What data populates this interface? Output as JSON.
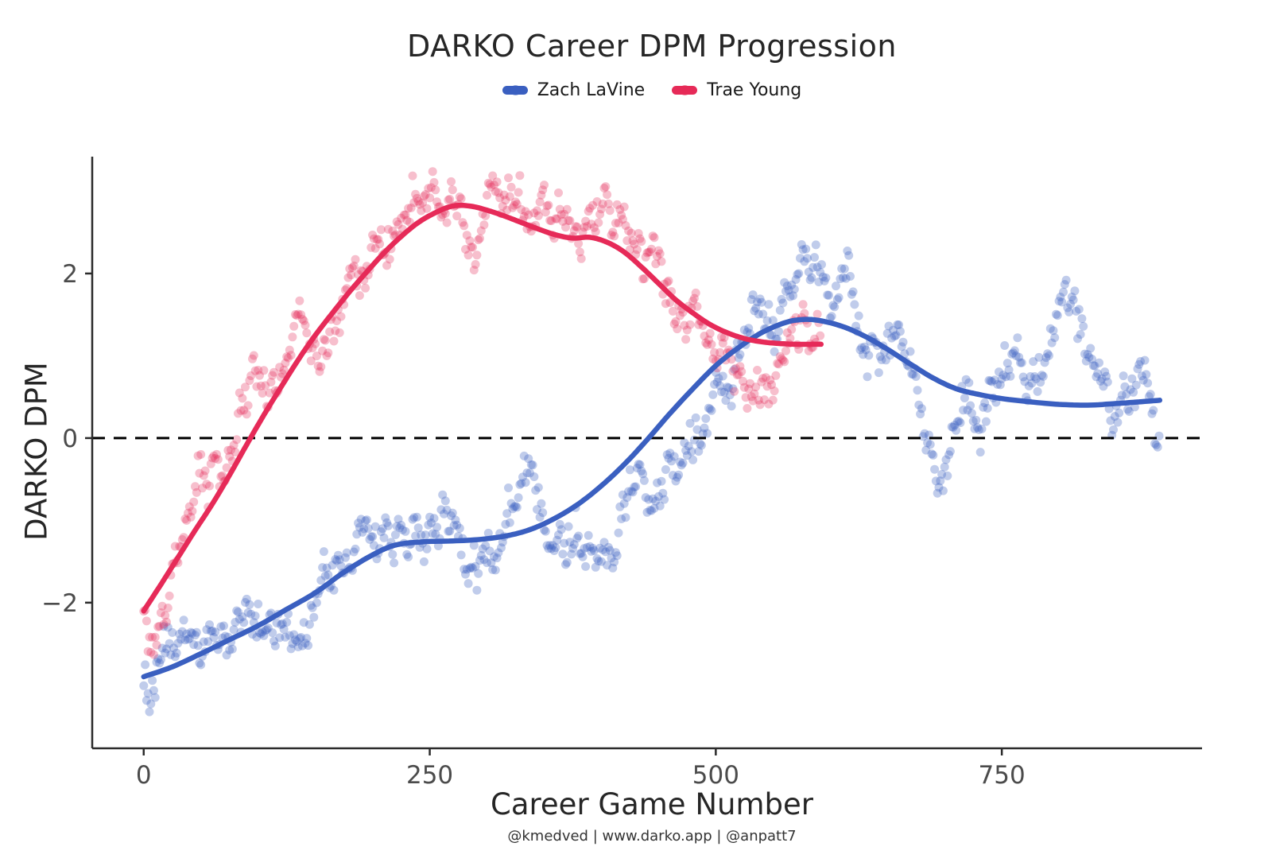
{
  "chart_data": {
    "type": "scatter",
    "title": "DARKO Career DPM Progression",
    "xlabel": "Career Game Number",
    "ylabel": "DARKO DPM",
    "caption": "@kmedved | www.darko.app | @anpatt7",
    "x_domain": [
      -45,
      925
    ],
    "y_domain": [
      -3.77,
      3.42
    ],
    "x_ticks": [
      {
        "value": 0,
        "label": "0"
      },
      {
        "value": 250,
        "label": "250"
      },
      {
        "value": 500,
        "label": "500"
      },
      {
        "value": 750,
        "label": "750"
      }
    ],
    "y_ticks": [
      {
        "value": -2,
        "label": "−2"
      },
      {
        "value": 0,
        "label": "0"
      },
      {
        "value": 2,
        "label": "2"
      }
    ],
    "zero_line": {
      "y": 0,
      "style": "dashed",
      "color": "#000000"
    },
    "axis_color": "#2b2b2b",
    "tick_label_color": "#4b4b4b",
    "legend_position": "top-center",
    "grid": false,
    "series": [
      {
        "name": "Zach LaVine",
        "color": "#3A5FC0",
        "scatter_opacity": 0.32,
        "trend": [
          [
            0,
            -2.9
          ],
          [
            25,
            -2.78
          ],
          [
            50,
            -2.62
          ],
          [
            75,
            -2.45
          ],
          [
            100,
            -2.28
          ],
          [
            125,
            -2.08
          ],
          [
            150,
            -1.88
          ],
          [
            175,
            -1.63
          ],
          [
            200,
            -1.42
          ],
          [
            220,
            -1.3
          ],
          [
            245,
            -1.26
          ],
          [
            270,
            -1.25
          ],
          [
            295,
            -1.23
          ],
          [
            320,
            -1.18
          ],
          [
            340,
            -1.1
          ],
          [
            360,
            -0.97
          ],
          [
            380,
            -0.8
          ],
          [
            400,
            -0.58
          ],
          [
            420,
            -0.32
          ],
          [
            440,
            -0.02
          ],
          [
            460,
            0.3
          ],
          [
            480,
            0.6
          ],
          [
            500,
            0.88
          ],
          [
            520,
            1.1
          ],
          [
            540,
            1.28
          ],
          [
            560,
            1.4
          ],
          [
            575,
            1.44
          ],
          [
            590,
            1.43
          ],
          [
            610,
            1.36
          ],
          [
            630,
            1.24
          ],
          [
            650,
            1.08
          ],
          [
            670,
            0.9
          ],
          [
            690,
            0.73
          ],
          [
            710,
            0.6
          ],
          [
            730,
            0.53
          ],
          [
            750,
            0.48
          ],
          [
            775,
            0.44
          ],
          [
            800,
            0.41
          ],
          [
            825,
            0.4
          ],
          [
            850,
            0.42
          ],
          [
            870,
            0.44
          ],
          [
            888,
            0.46
          ]
        ],
        "scatter": {
          "seed": 1234,
          "max_game": 888,
          "step": 1.25,
          "persistence": 0.955,
          "impulse": 0.4,
          "jitter": 0.3,
          "point_radius": 5.5
        }
      },
      {
        "name": "Trae Young",
        "color": "#E62A58",
        "scatter_opacity": 0.3,
        "trend": [
          [
            0,
            -2.1
          ],
          [
            15,
            -1.78
          ],
          [
            30,
            -1.45
          ],
          [
            45,
            -1.12
          ],
          [
            60,
            -0.8
          ],
          [
            75,
            -0.45
          ],
          [
            90,
            -0.08
          ],
          [
            105,
            0.28
          ],
          [
            120,
            0.62
          ],
          [
            135,
            0.95
          ],
          [
            150,
            1.25
          ],
          [
            165,
            1.52
          ],
          [
            180,
            1.78
          ],
          [
            195,
            2.02
          ],
          [
            210,
            2.25
          ],
          [
            225,
            2.45
          ],
          [
            240,
            2.62
          ],
          [
            255,
            2.74
          ],
          [
            270,
            2.82
          ],
          [
            285,
            2.82
          ],
          [
            300,
            2.77
          ],
          [
            315,
            2.7
          ],
          [
            330,
            2.62
          ],
          [
            345,
            2.54
          ],
          [
            360,
            2.47
          ],
          [
            375,
            2.43
          ],
          [
            390,
            2.44
          ],
          [
            405,
            2.38
          ],
          [
            420,
            2.26
          ],
          [
            435,
            2.08
          ],
          [
            450,
            1.88
          ],
          [
            465,
            1.68
          ],
          [
            480,
            1.52
          ],
          [
            495,
            1.38
          ],
          [
            510,
            1.28
          ],
          [
            525,
            1.21
          ],
          [
            540,
            1.17
          ],
          [
            555,
            1.15
          ],
          [
            570,
            1.14
          ],
          [
            585,
            1.14
          ],
          [
            592,
            1.14
          ]
        ],
        "scatter": {
          "seed": 99,
          "max_game": 592,
          "step": 1.25,
          "persistence": 0.955,
          "impulse": 0.4,
          "jitter": 0.3,
          "point_radius": 5.5
        }
      }
    ]
  }
}
